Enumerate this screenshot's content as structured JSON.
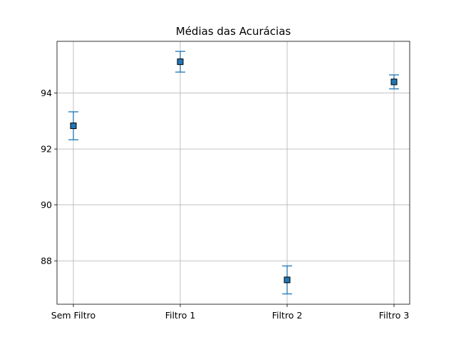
{
  "chart_data": {
    "type": "scatter",
    "title": "Médias das Acurácias",
    "xlabel": "",
    "ylabel": "",
    "categories": [
      "Sem Filtro",
      "Filtro 1",
      "Filtro 2",
      "Filtro 3"
    ],
    "values": [
      92.83,
      95.12,
      87.32,
      94.4
    ],
    "errors": [
      0.5,
      0.37,
      0.5,
      0.25
    ],
    "y_ticks": [
      "88",
      "90",
      "92",
      "94"
    ],
    "ylim": [
      86.45,
      95.85
    ],
    "grid": true,
    "marker": "square",
    "color": "#1f77b4"
  }
}
